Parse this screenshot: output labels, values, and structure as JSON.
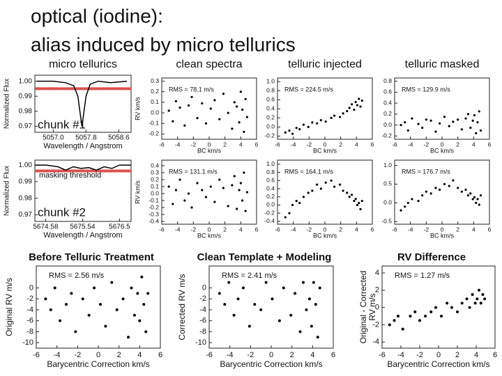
{
  "header": {
    "title_lines": [
      "optical (iodine):",
      "alias induced by micro tellurics"
    ]
  },
  "chart_data": [
    {
      "type": "line",
      "title": "micro tellurics",
      "ylabel": "Normalized Flux",
      "xlabel": "Wavelength / Angstrom",
      "annotations": [
        "chunk #1"
      ],
      "x": [
        5056.6,
        5057.0,
        5057.3,
        5057.5,
        5057.6,
        5057.65,
        5057.7,
        5057.75,
        5057.8,
        5057.9,
        5058.1,
        5058.4,
        5058.8
      ],
      "y": [
        1.0,
        1.0,
        0.999,
        0.997,
        0.99,
        0.98,
        0.97,
        0.98,
        0.99,
        0.998,
        1.0,
        0.999,
        1.0
      ],
      "color": "#000000",
      "threshold": 0.995,
      "threshold_color": "#d9534f",
      "xlim": [
        5056.55,
        5058.9
      ],
      "xticks": [
        {
          "value": 5057,
          "label": "5057.0"
        },
        5057.8,
        5058.6
      ],
      "ylim": [
        0.966,
        1.004
      ],
      "yticks": [
        {
          "value": 1,
          "label": "1.00"
        },
        0.99,
        0.98,
        0.97
      ]
    },
    {
      "type": "scatter",
      "title": "clean spectra",
      "ylabel": "RV km/s",
      "xlabel": "BC km/s",
      "annotations": [
        "RMS = 78.1 m/s"
      ],
      "color": "#000000",
      "x": [
        -5.1,
        -4.6,
        -4.2,
        -3.7,
        -3.1,
        -2.6,
        -2.2,
        -1.5,
        -0.9,
        -0.4,
        0.2,
        0.7,
        1.3,
        1.8,
        2.4,
        2.9,
        3.2,
        3.5,
        3.8,
        4.0,
        4.2,
        4.4,
        4.6,
        4.8
      ],
      "y": [
        0.02,
        -0.08,
        0.11,
        0.05,
        -0.12,
        0.07,
        0.15,
        -0.05,
        0.09,
        -0.1,
        0.04,
        0.12,
        -0.06,
        0.18,
        0.0,
        -0.15,
        0.1,
        0.06,
        -0.09,
        0.2,
        0.03,
        -0.18,
        0.13,
        -0.04
      ],
      "xlim": [
        -6,
        6
      ],
      "xticks": [
        -6,
        -4,
        -2,
        0,
        2,
        4,
        6
      ],
      "ylim": [
        -0.25,
        0.33
      ],
      "yticks": [
        0.3,
        0.2,
        0.1,
        {
          "value": 0,
          "label": "0.0"
        },
        -0.1,
        -0.2
      ]
    },
    {
      "type": "scatter",
      "title": "telluric injected",
      "ylabel": "",
      "xlabel": "BC km/s",
      "annotations": [
        "RMS = 224.5 m/s"
      ],
      "color": "#000000",
      "x": [
        -5.0,
        -4.5,
        -4.1,
        -3.6,
        -3.2,
        -2.7,
        -2.1,
        -1.6,
        -1.0,
        -0.5,
        0.1,
        0.8,
        1.2,
        1.9,
        2.3,
        2.8,
        3.1,
        3.4,
        3.7,
        3.9,
        4.1,
        4.3,
        4.5,
        4.7
      ],
      "y": [
        -0.12,
        -0.08,
        -0.15,
        -0.02,
        -0.05,
        0.05,
        0.0,
        0.1,
        0.08,
        0.15,
        0.12,
        0.2,
        0.25,
        0.22,
        0.3,
        0.35,
        0.42,
        0.5,
        0.38,
        0.55,
        0.48,
        0.62,
        0.45,
        0.58
      ],
      "xlim": [
        -6,
        6
      ],
      "xticks": [
        -6,
        -4,
        -2,
        0,
        2,
        4,
        6
      ],
      "ylim": [
        -0.27,
        1.08
      ],
      "yticks": [
        {
          "value": 1,
          "label": "1.0"
        },
        0.8,
        0.6,
        0.4,
        0.2,
        {
          "value": 0,
          "label": "0.0"
        },
        -0.2
      ]
    },
    {
      "type": "scatter",
      "title": "telluric masked",
      "xlabel": "BC km/s",
      "annotations": [
        "RMS = 129.9 m/s"
      ],
      "color": "#000000",
      "x": [
        -5.2,
        -4.7,
        -4.3,
        -3.8,
        -3.0,
        -2.5,
        -2.0,
        -1.4,
        -0.8,
        -0.3,
        0.3,
        0.9,
        1.4,
        2.0,
        2.5,
        3.0,
        3.3,
        3.6,
        3.9,
        4.1,
        4.3,
        4.5,
        4.7,
        4.9
      ],
      "y": [
        0.0,
        0.05,
        -0.1,
        0.12,
        0.02,
        -0.05,
        0.1,
        0.08,
        -0.12,
        0.03,
        0.15,
        -0.02,
        0.06,
        0.1,
        -0.08,
        0.12,
        0.2,
        -0.05,
        0.08,
        0.18,
        -0.15,
        0.05,
        0.25,
        -0.1
      ],
      "xlim": [
        -6,
        6
      ],
      "xticks": [
        -6,
        -4,
        -2,
        0,
        2,
        4,
        6
      ],
      "ylim": [
        -0.26,
        0.86
      ],
      "yticks": [
        0.8,
        0.6,
        0.4,
        0.2,
        {
          "value": 0,
          "label": "0.0"
        },
        -0.2
      ]
    },
    {
      "type": "line",
      "ylabel": "Normalized Flux",
      "xlabel": "Wavelength / Angstrom",
      "annotations": [
        "masking threshold",
        "chunk #2"
      ],
      "x": [
        5674.3,
        5674.6,
        5674.9,
        5675.1,
        5675.3,
        5675.5,
        5675.7,
        5675.9,
        5676.1,
        5676.3,
        5676.5,
        5676.8
      ],
      "y": [
        1.0,
        1.0,
        0.999,
        0.997,
        0.999,
        0.998,
        0.9985,
        0.997,
        0.999,
        0.998,
        1.0,
        1.0
      ],
      "color": "#000000",
      "threshold": 0.9965,
      "threshold_color": "#d9534f",
      "xlim": [
        5674.3,
        5676.8
      ],
      "xticks": [
        5674.58,
        5675.54,
        5676.5
      ],
      "ylim": [
        0.966,
        1.003
      ],
      "yticks": [
        {
          "value": 1,
          "label": "1.00"
        },
        0.99,
        0.98,
        0.97
      ]
    },
    {
      "type": "scatter",
      "ylabel": "RV km/s",
      "xlabel": "BC km/s",
      "annotations": [
        "RMS = 131.1 m/s"
      ],
      "color": "#000000",
      "x": [
        -5.1,
        -4.6,
        -4.2,
        -3.7,
        -3.1,
        -2.6,
        -2.2,
        -1.5,
        -0.9,
        -0.4,
        0.2,
        0.7,
        1.3,
        1.8,
        2.4,
        2.9,
        3.2,
        3.5,
        3.8,
        4.0,
        4.2,
        4.4,
        4.6,
        4.8
      ],
      "y": [
        0.1,
        -0.15,
        0.05,
        0.2,
        -0.1,
        0.0,
        -0.2,
        0.15,
        0.05,
        -0.05,
        0.1,
        -0.12,
        0.2,
        0.08,
        -0.18,
        0.12,
        0.25,
        -0.22,
        0.05,
        0.15,
        -0.1,
        0.3,
        -0.25,
        0.02
      ],
      "xlim": [
        -6,
        6
      ],
      "xticks": [
        -6,
        -4,
        -2,
        0,
        2,
        4,
        6
      ],
      "ylim": [
        -0.44,
        0.48
      ],
      "yticks": [
        0.4,
        0.3,
        0.2,
        0.1,
        {
          "value": 0,
          "label": "0.0"
        },
        -0.1,
        -0.2,
        -0.3,
        -0.4
      ]
    },
    {
      "type": "scatter",
      "xlabel": "BC km/s",
      "annotations": [
        "RMS = 164.1 m/s"
      ],
      "color": "#000000",
      "x": [
        -5.0,
        -4.5,
        -4.1,
        -3.6,
        -3.2,
        -2.7,
        -2.1,
        -1.6,
        -1.0,
        -0.5,
        0.1,
        0.8,
        1.2,
        1.9,
        2.3,
        2.8,
        3.1,
        3.4,
        3.7,
        3.9,
        4.1,
        4.3,
        4.5,
        4.7
      ],
      "y": [
        -0.3,
        -0.2,
        0.0,
        0.1,
        0.05,
        0.2,
        0.3,
        0.35,
        0.5,
        0.4,
        0.55,
        0.6,
        0.45,
        0.5,
        0.35,
        0.3,
        0.2,
        0.25,
        0.1,
        0.15,
        0.0,
        0.05,
        -0.1,
        0.1
      ],
      "xlim": [
        -6,
        6
      ],
      "xticks": [
        -6,
        -4,
        -2,
        0,
        2,
        4,
        6
      ],
      "ylim": [
        -0.47,
        1.1
      ],
      "yticks": [
        {
          "value": 1,
          "label": "1.0"
        },
        0.8,
        0.6,
        0.4,
        0.2,
        {
          "value": 0,
          "label": "0.0"
        },
        -0.2,
        -0.4
      ]
    },
    {
      "type": "scatter",
      "xlabel": "BC km/s",
      "annotations": [
        "RMS = 176.7 m/s"
      ],
      "color": "#000000",
      "x": [
        -5.2,
        -4.7,
        -4.3,
        -3.8,
        -3.0,
        -2.5,
        -2.0,
        -1.4,
        -0.8,
        -0.3,
        0.3,
        0.9,
        1.4,
        2.0,
        2.5,
        3.0,
        3.3,
        3.6,
        3.9,
        4.1,
        4.3,
        4.5,
        4.7,
        4.9
      ],
      "y": [
        -0.2,
        -0.1,
        0.0,
        0.1,
        0.05,
        0.2,
        0.3,
        0.25,
        0.4,
        0.35,
        0.5,
        0.45,
        0.6,
        0.4,
        0.3,
        0.35,
        0.2,
        0.25,
        0.1,
        0.15,
        0.0,
        0.1,
        -0.05,
        0.2
      ],
      "xlim": [
        -6,
        6
      ],
      "xticks": [
        -6,
        -4,
        -2,
        0,
        2,
        4,
        6
      ],
      "ylim": [
        -0.57,
        1.14
      ],
      "yticks": [
        {
          "value": 1,
          "label": "1.0"
        },
        0.5,
        {
          "value": 0,
          "label": "0.0"
        },
        -0.5
      ]
    },
    {
      "type": "scatter",
      "title": "Before Telluric Treatment",
      "ylabel": "Original RV m/s",
      "xlabel": "Barycentric Correction km/s",
      "annotations": [
        "RMS = 2.56 m/s"
      ],
      "color": "#000000",
      "x": [
        -5.1,
        -4.6,
        -4.2,
        -3.7,
        -3.1,
        -2.6,
        -2.2,
        -1.5,
        -0.9,
        -0.4,
        0.2,
        0.7,
        1.3,
        1.8,
        2.4,
        2.9,
        3.2,
        3.5,
        3.8,
        4.0,
        4.2,
        4.4,
        4.6,
        4.8
      ],
      "y": [
        -2,
        -4,
        0,
        -6,
        -3,
        -1,
        -8,
        -2,
        -5,
        0,
        -3,
        -7,
        1,
        -4,
        -2,
        -9,
        0,
        -5,
        -1,
        -6,
        2,
        -3,
        -8,
        -1
      ],
      "xlim": [
        -6,
        6
      ],
      "xticks": [
        -6,
        -4,
        -2,
        0,
        2,
        4,
        6
      ],
      "ylim": [
        -11,
        4
      ],
      "yticks": [
        0,
        -2,
        -4,
        -6,
        -8,
        -10
      ]
    },
    {
      "type": "scatter",
      "title": "Clean Template + Modeling",
      "ylabel": "Corrected RV m/s",
      "xlabel": "Barycentric Correction km/s",
      "annotations": [
        "RMS = 2.41 m/s"
      ],
      "color": "#000000",
      "x": [
        -5.0,
        -4.5,
        -4.1,
        -3.6,
        -3.2,
        -2.7,
        -2.1,
        -1.6,
        -1.0,
        -0.5,
        0.1,
        0.8,
        1.2,
        1.9,
        2.3,
        2.8,
        3.1,
        3.4,
        3.7,
        3.9,
        4.1,
        4.3,
        4.5,
        4.7
      ],
      "y": [
        -1,
        -3,
        1,
        -5,
        -2,
        0,
        -7,
        -3,
        -4,
        1,
        -2,
        -6,
        0,
        -5,
        -1,
        -8,
        1,
        -4,
        -2,
        -7,
        1,
        -3,
        -9,
        0
      ],
      "xlim": [
        -6,
        6
      ],
      "xticks": [
        -6,
        -4,
        -2,
        0,
        2,
        4,
        6
      ],
      "ylim": [
        -11,
        4
      ],
      "yticks": [
        0,
        -2,
        -4,
        -6,
        -8,
        -10
      ]
    },
    {
      "type": "scatter",
      "title": "RV Difference",
      "ylabel": [
        "Original - Corrected",
        "RV m/s"
      ],
      "xlabel": "Barycentric Correction km/s",
      "annotations": [
        "RMS = 1.27 m/s"
      ],
      "color": "#000000",
      "x": [
        -5.2,
        -4.7,
        -4.3,
        -3.8,
        -3.0,
        -2.5,
        -2.0,
        -1.4,
        -0.8,
        -0.3,
        0.3,
        0.9,
        1.4,
        2.0,
        2.5,
        3.0,
        3.3,
        3.6,
        3.9,
        4.1,
        4.3,
        4.5,
        4.7,
        4.9
      ],
      "y": [
        -2,
        -1.5,
        -1,
        -2.5,
        -1,
        -0.5,
        -1.5,
        -1,
        -0.5,
        0,
        -1,
        0.5,
        0,
        -0.5,
        0.5,
        1,
        0,
        1.5,
        0.5,
        1,
        2,
        0.5,
        1.5,
        1
      ],
      "xlim": [
        -6,
        6
      ],
      "xticks": [
        -6,
        -4,
        -2,
        0,
        2,
        4,
        6
      ],
      "ylim": [
        -4.7,
        4.8
      ],
      "yticks": [
        4,
        2,
        0,
        -2,
        -4
      ]
    }
  ]
}
